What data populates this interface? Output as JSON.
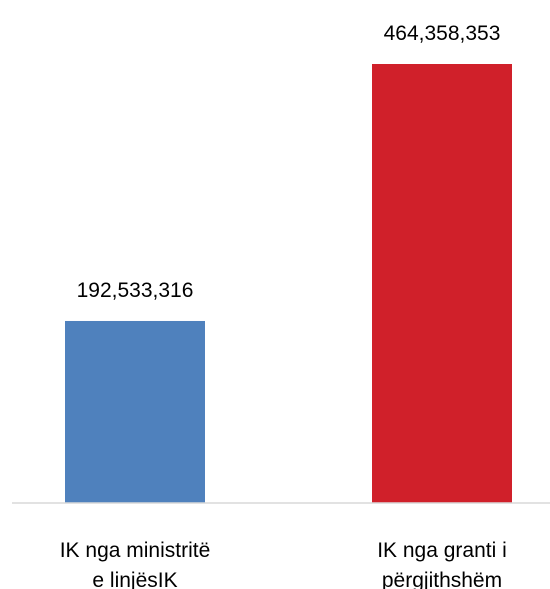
{
  "chart_data": {
    "type": "bar",
    "categories": [
      [
        "IK nga ministritë",
        "e linjësIK"
      ],
      [
        "IK nga granti i",
        "përgjithshëm"
      ]
    ],
    "values": [
      192533316,
      464358353
    ],
    "value_labels": [
      "192,533,316",
      "464,358,353"
    ],
    "colors": [
      "#4f81bd",
      "#d0202a"
    ],
    "ylim": [
      0,
      464358353
    ],
    "grid": false,
    "legend": "none",
    "title": "",
    "xlabel": "",
    "ylabel": ""
  }
}
